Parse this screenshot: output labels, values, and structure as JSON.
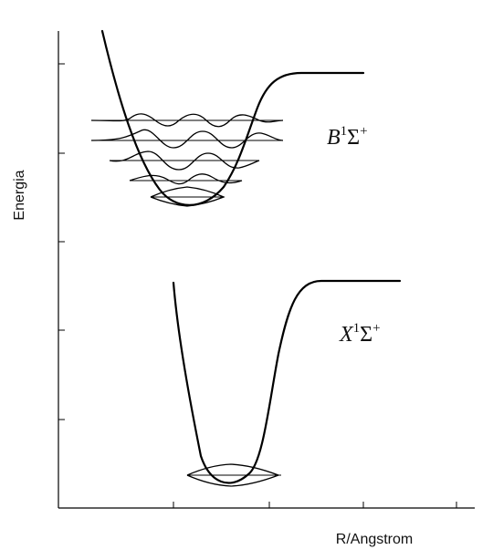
{
  "axes": {
    "y_label": "Energia",
    "x_label": "R/Angstrom"
  },
  "states": {
    "upper": {
      "letter": "B",
      "multiplicity": "1",
      "symbol": "Σ",
      "parity": "+",
      "vibrational_levels_shown": 5
    },
    "lower": {
      "letter": "X",
      "multiplicity": "1",
      "symbol": "Σ",
      "parity": "+",
      "vibrational_levels_shown": 1
    }
  }
}
